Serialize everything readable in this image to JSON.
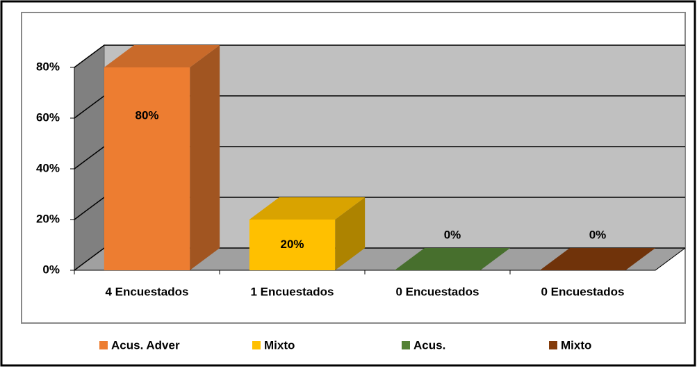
{
  "chart_data": {
    "type": "bar3d",
    "categories": [
      "4 Encuestados",
      "1 Encuestados",
      "0 Encuestados",
      "0 Encuestados"
    ],
    "values": [
      80,
      20,
      0,
      0
    ],
    "value_labels": [
      "80%",
      "20%",
      "0%",
      "0%"
    ],
    "colors": [
      "#ED7D31",
      "#FFC000",
      "#548235",
      "#843C0C"
    ],
    "legend": [
      "Acus. Adver",
      "Mixto",
      "Acus.",
      "Mixto"
    ],
    "ylim": [
      0,
      80
    ],
    "yticks": [
      {
        "value": 0,
        "label": "0%"
      },
      {
        "value": 20,
        "label": "20%"
      },
      {
        "value": 40,
        "label": "40%"
      },
      {
        "value": 60,
        "label": "60%"
      },
      {
        "value": 80,
        "label": "80%"
      }
    ],
    "grid": true
  }
}
